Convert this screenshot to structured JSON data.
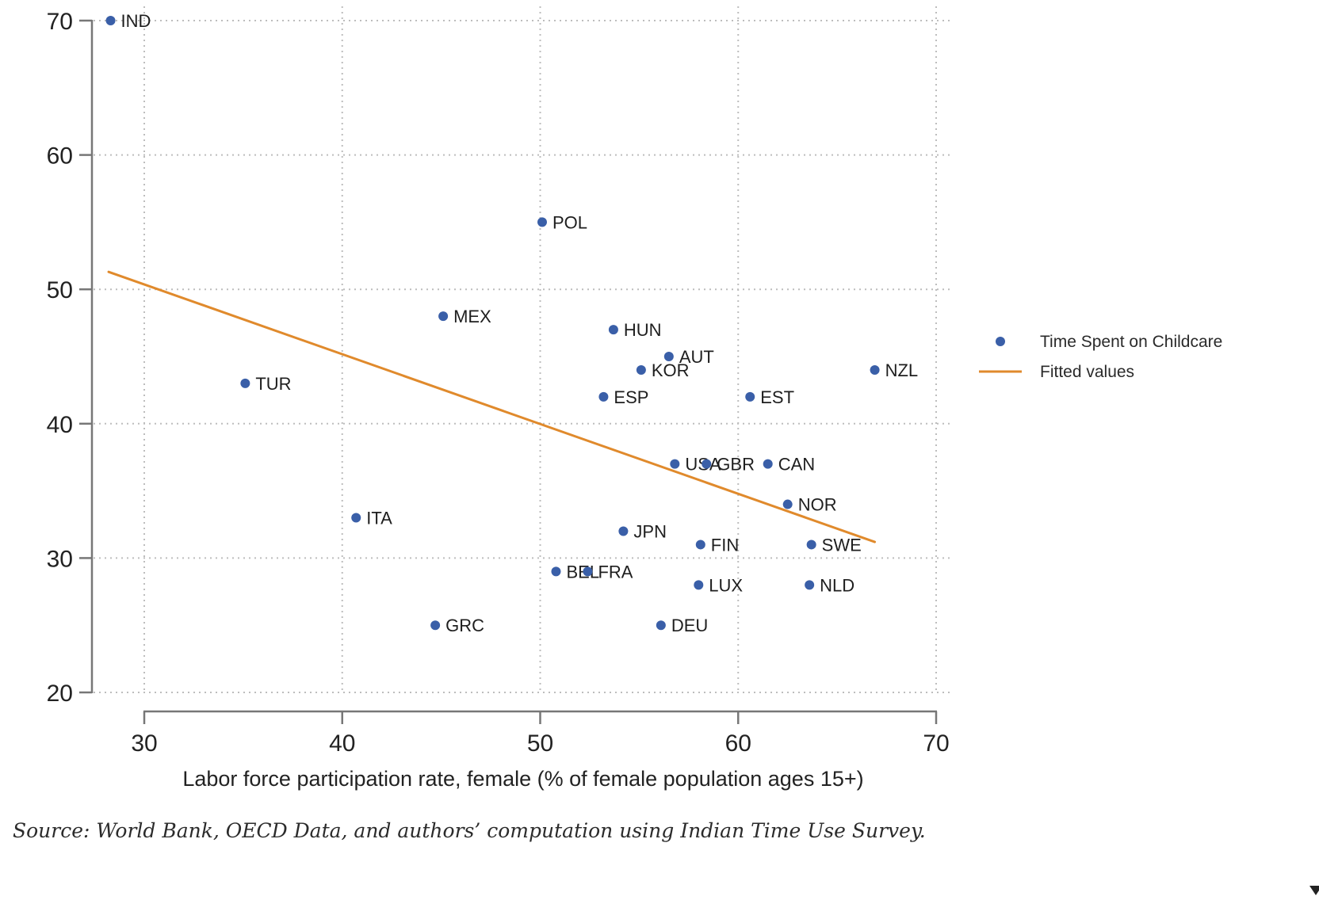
{
  "chart_data": {
    "type": "scatter",
    "title": "",
    "xlabel": "Labor force participation rate, female (% of female population ages 15+)",
    "ylabel": "",
    "xlim": [
      30,
      70
    ],
    "ylim": [
      20,
      70
    ],
    "x_ticks": [
      30,
      40,
      50,
      60,
      70
    ],
    "y_ticks": [
      20,
      30,
      40,
      50,
      60,
      70
    ],
    "grid": true,
    "legend_position": "right",
    "legend": [
      {
        "name": "Time Spent on Childcare",
        "kind": "marker",
        "color": "#3a5fa8"
      },
      {
        "name": "Fitted values",
        "kind": "line",
        "color": "#e08a2c"
      }
    ],
    "series": [
      {
        "name": "Time Spent on Childcare",
        "color": "#3a5fa8",
        "points": [
          {
            "label": "IND",
            "x": 28.3,
            "y": 70
          },
          {
            "label": "POL",
            "x": 50.1,
            "y": 55
          },
          {
            "label": "MEX",
            "x": 45.1,
            "y": 48
          },
          {
            "label": "HUN",
            "x": 53.7,
            "y": 47
          },
          {
            "label": "AUT",
            "x": 56.5,
            "y": 45
          },
          {
            "label": "KOR",
            "x": 55.1,
            "y": 44
          },
          {
            "label": "NZL",
            "x": 66.9,
            "y": 44
          },
          {
            "label": "TUR",
            "x": 35.1,
            "y": 43
          },
          {
            "label": "ESP",
            "x": 53.2,
            "y": 42
          },
          {
            "label": "EST",
            "x": 60.6,
            "y": 42
          },
          {
            "label": "USA",
            "x": 56.8,
            "y": 37
          },
          {
            "label": "GBR",
            "x": 58.4,
            "y": 37
          },
          {
            "label": "CAN",
            "x": 61.5,
            "y": 37
          },
          {
            "label": "NOR",
            "x": 62.5,
            "y": 34
          },
          {
            "label": "ITA",
            "x": 40.7,
            "y": 33
          },
          {
            "label": "JPN",
            "x": 54.2,
            "y": 32
          },
          {
            "label": "FIN",
            "x": 58.1,
            "y": 31
          },
          {
            "label": "SWE",
            "x": 63.7,
            "y": 31
          },
          {
            "label": "BEL",
            "x": 50.8,
            "y": 29
          },
          {
            "label": "FRA",
            "x": 52.4,
            "y": 29
          },
          {
            "label": "LUX",
            "x": 58.0,
            "y": 28
          },
          {
            "label": "NLD",
            "x": 63.6,
            "y": 28
          },
          {
            "label": "GRC",
            "x": 44.7,
            "y": 25
          },
          {
            "label": "DEU",
            "x": 56.1,
            "y": 25
          }
        ]
      },
      {
        "name": "Fitted values",
        "color": "#e08a2c",
        "line": [
          {
            "x": 28.2,
            "y": 51.3
          },
          {
            "x": 66.9,
            "y": 31.2
          }
        ]
      }
    ]
  },
  "caption": "Source: World Bank, OECD Data, and authors’ computation using Indian Time Use Survey."
}
